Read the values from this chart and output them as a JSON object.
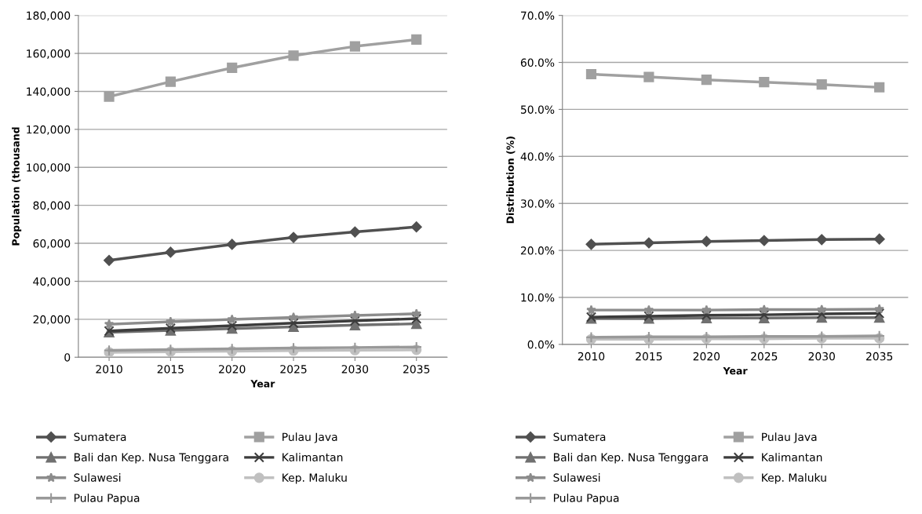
{
  "chart_data": [
    {
      "type": "line",
      "xlabel": "Year",
      "ylabel": "Population (thousand",
      "categories": [
        "2010",
        "2015",
        "2020",
        "2025",
        "2030",
        "2035"
      ],
      "ylim": [
        0,
        180000
      ],
      "yticks": [
        0,
        {
          "value": 20000,
          "label": "20,000"
        },
        {
          "value": 40000,
          "label": "40,000"
        },
        {
          "value": 60000,
          "label": "60,000"
        },
        {
          "value": 80000,
          "label": "80,000"
        },
        {
          "value": 100000,
          "label": "100,000"
        },
        {
          "value": 120000,
          "label": "120,000"
        },
        {
          "value": 140000,
          "label": "140,000"
        },
        {
          "value": 160000,
          "label": "160,000"
        },
        {
          "value": 180000,
          "label": "180,000"
        }
      ],
      "grid": "y",
      "legend": "bottom",
      "series": [
        {
          "name": "Sumatera",
          "color": "#505050",
          "marker": "diamond",
          "values": [
            51000,
            55300,
            59400,
            63100,
            66000,
            68600
          ]
        },
        {
          "name": "Pulau Java",
          "color": "#a0a0a0",
          "marker": "square",
          "values": [
            137200,
            145100,
            152400,
            158800,
            163700,
            167300
          ]
        },
        {
          "name": "Bali dan Kep. Nusa Tenggara",
          "color": "#707070",
          "marker": "triangle",
          "values": [
            13100,
            14100,
            15100,
            16000,
            16900,
            17600
          ]
        },
        {
          "name": "Kalimantan",
          "color": "#3c3c3c",
          "marker": "cross",
          "values": [
            13800,
            15300,
            16600,
            18000,
            19200,
            20300
          ]
        },
        {
          "name": "Sulawesi",
          "color": "#8c8c8c",
          "marker": "star",
          "values": [
            17400,
            18700,
            19900,
            21000,
            22000,
            22900
          ]
        },
        {
          "name": "Kep. Maluku",
          "color": "#c0c0c0",
          "marker": "circle",
          "values": [
            2600,
            2900,
            3200,
            3500,
            3700,
            3900
          ]
        },
        {
          "name": "Pulau Papua",
          "color": "#999999",
          "marker": "plus",
          "values": [
            3600,
            4000,
            4400,
            4800,
            5100,
            5400
          ]
        }
      ]
    },
    {
      "type": "line",
      "xlabel": "Year",
      "ylabel": "Distribution (%)",
      "categories": [
        "2010",
        "2015",
        "2020",
        "2025",
        "2030",
        "2035"
      ],
      "ylim": [
        0,
        70
      ],
      "yticks": [
        {
          "value": 0,
          "label": "0.0%"
        },
        {
          "value": 10,
          "label": "10.0%"
        },
        {
          "value": 20,
          "label": "20.0%"
        },
        {
          "value": 30,
          "label": "30.0%"
        },
        {
          "value": 40,
          "label": "40.0%"
        },
        {
          "value": 50,
          "label": "50.0%"
        },
        {
          "value": 60,
          "label": "60.0%"
        },
        {
          "value": 70,
          "label": "70.0%"
        }
      ],
      "grid": "y",
      "legend": "bottom",
      "series": [
        {
          "name": "Sumatera",
          "color": "#505050",
          "marker": "diamond",
          "values": [
            21.3,
            21.6,
            21.9,
            22.1,
            22.3,
            22.4
          ]
        },
        {
          "name": "Pulau Java",
          "color": "#a0a0a0",
          "marker": "square",
          "values": [
            57.5,
            56.9,
            56.3,
            55.8,
            55.3,
            54.7
          ]
        },
        {
          "name": "Bali dan Kep. Nusa Tenggara",
          "color": "#707070",
          "marker": "triangle",
          "values": [
            5.5,
            5.5,
            5.6,
            5.6,
            5.7,
            5.7
          ]
        },
        {
          "name": "Kalimantan",
          "color": "#3c3c3c",
          "marker": "cross",
          "values": [
            5.8,
            6.0,
            6.2,
            6.3,
            6.5,
            6.6
          ]
        },
        {
          "name": "Sulawesi",
          "color": "#8c8c8c",
          "marker": "star",
          "values": [
            7.3,
            7.3,
            7.3,
            7.4,
            7.4,
            7.5
          ]
        },
        {
          "name": "Kep. Maluku",
          "color": "#c0c0c0",
          "marker": "circle",
          "values": [
            1.1,
            1.1,
            1.2,
            1.2,
            1.3,
            1.3
          ]
        },
        {
          "name": "Pulau Papua",
          "color": "#999999",
          "marker": "plus",
          "values": [
            1.5,
            1.6,
            1.6,
            1.7,
            1.7,
            1.8
          ]
        }
      ]
    }
  ]
}
